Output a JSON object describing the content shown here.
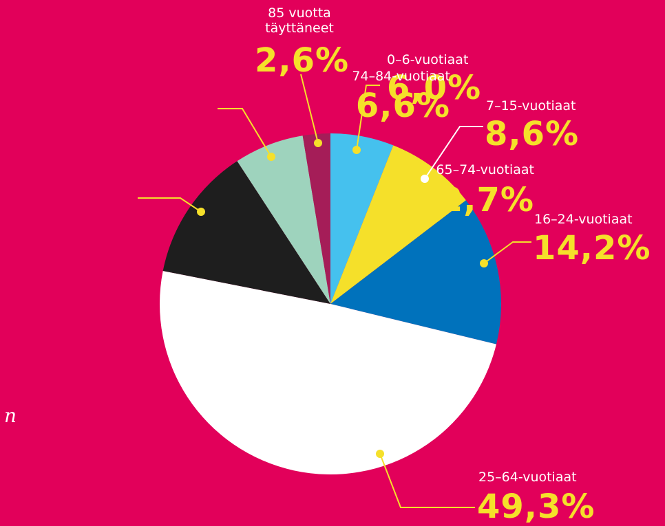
{
  "chart_data": {
    "type": "pie",
    "categories": [
      "0–6-vuotiaat",
      "7–15-vuotiaat",
      "16–24-vuotiaat",
      "25–64-vuotiaat",
      "65–74-vuotiaat",
      "74–84-vuotiaat",
      "85 vuotta täyttäneet"
    ],
    "values": [
      6.0,
      8.6,
      14.2,
      49.3,
      12.7,
      6.6,
      2.6
    ],
    "value_labels": [
      "6,0%",
      "8,6%",
      "14,2%",
      "49,3%",
      "12,7%",
      "6,6%",
      "2,6%"
    ],
    "colors": [
      "#45c1ee",
      "#f5e02a",
      "#0072bc",
      "#ffffff",
      "#1e1e1e",
      "#9ed3bd",
      "#a51d58"
    ],
    "annotation": "n"
  }
}
